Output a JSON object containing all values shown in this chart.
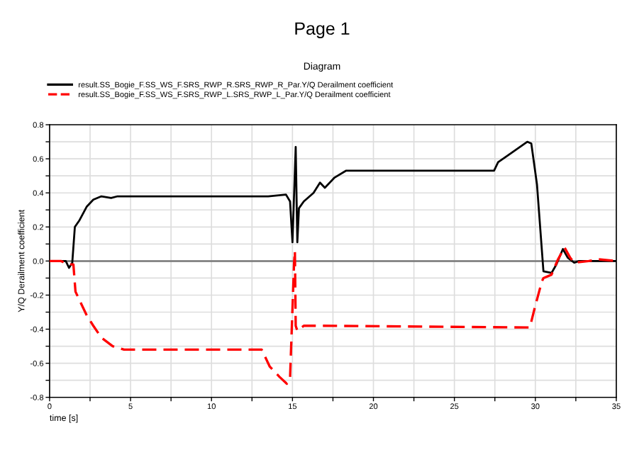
{
  "chart_data": {
    "type": "line",
    "title": "Page 1",
    "subtitle": "Diagram",
    "xlabel": "time [s]",
    "ylabel": "Y/Q Derailment coefficient",
    "xlim": [
      0,
      35
    ],
    "ylim": [
      -0.8,
      0.8
    ],
    "xticks": [
      0,
      {
        "value": 2.5,
        "label": null
      },
      5,
      {
        "value": 7.5,
        "label": null
      },
      10,
      {
        "value": 12.5,
        "label": null
      },
      15,
      {
        "value": 17.5,
        "label": null
      },
      20,
      {
        "value": 22.5,
        "label": null
      },
      25,
      {
        "value": 27.5,
        "label": null
      },
      30,
      {
        "value": 32.5,
        "label": null
      },
      35
    ],
    "yticks": [
      -0.8,
      {
        "value": -0.7,
        "label": null
      },
      -0.6,
      {
        "value": -0.5,
        "label": null
      },
      -0.4,
      {
        "value": -0.3,
        "label": null
      },
      -0.2,
      {
        "value": -0.1,
        "label": null
      },
      {
        "value": 0,
        "label": "0.0"
      },
      {
        "value": 0.1,
        "label": null
      },
      0.2,
      {
        "value": 0.3,
        "label": null
      },
      0.4,
      {
        "value": 0.5,
        "label": null
      },
      0.6,
      {
        "value": 0.7,
        "label": null
      },
      0.8
    ],
    "grid": true,
    "legend": "top left",
    "marker": "none",
    "ref_lines": [
      {
        "axis": "y",
        "value": 0,
        "color": "#777777"
      }
    ],
    "series": [
      {
        "name": "result.SS_Bogie_F.SS_WS_F.SRS_RWP_R.SRS_RWP_R_Par.Y/Q Derailment coefficient",
        "color": "#000000",
        "line_style": "solid",
        "x": [
          0,
          1.0,
          1.2,
          1.4,
          1.56,
          1.85,
          2.3,
          2.7,
          3.2,
          3.8,
          4.2,
          13.5,
          14.6,
          14.85,
          15.0,
          15.2,
          15.3,
          15.4,
          15.7,
          16.3,
          16.7,
          17.0,
          17.6,
          18.3,
          27.45,
          27.7,
          28.3,
          29.5,
          29.75,
          30.1,
          30.5,
          31.0,
          31.3,
          31.7,
          32.0,
          32.4,
          32.7,
          33.9,
          35
        ],
        "values": [
          0,
          0,
          -0.04,
          -0.01,
          0.2,
          0.24,
          0.32,
          0.36,
          0.38,
          0.37,
          0.38,
          0.38,
          0.39,
          0.35,
          0.11,
          0.67,
          0.11,
          0.31,
          0.35,
          0.4,
          0.46,
          0.43,
          0.49,
          0.53,
          0.53,
          0.58,
          0.62,
          0.7,
          0.69,
          0.45,
          -0.06,
          -0.07,
          -0.02,
          0.07,
          0.02,
          -0.01,
          0,
          0,
          0
        ]
      },
      {
        "name": "result.SS_Bogie_F.SS_WS_F.SRS_RWP_L.SRS_RWP_L_Par.Y/Q Derailment coefficient",
        "color": "#ff0000",
        "line_style": "dashed",
        "x": [
          0,
          0.7,
          1.2,
          1.47,
          1.6,
          1.85,
          2.3,
          2.7,
          3.2,
          3.9,
          4.6,
          13.1,
          13.6,
          14.2,
          14.65,
          14.85,
          15.1,
          15.15,
          15.2,
          15.3,
          15.7,
          16.85,
          29.66,
          29.95,
          30.4,
          30.5,
          31.0,
          31.4,
          31.8,
          32.15,
          32.4,
          33.3,
          33.9,
          35
        ],
        "values": [
          0,
          0,
          -0.02,
          -0.02,
          -0.18,
          -0.23,
          -0.32,
          -0.38,
          -0.45,
          -0.5,
          -0.52,
          -0.52,
          -0.62,
          -0.68,
          -0.72,
          -0.69,
          -0.01,
          0.06,
          -0.38,
          -0.41,
          -0.38,
          -0.38,
          -0.39,
          -0.28,
          -0.12,
          -0.1,
          -0.08,
          0.01,
          0.08,
          0.02,
          -0.01,
          0,
          0.01,
          0
        ]
      }
    ]
  }
}
